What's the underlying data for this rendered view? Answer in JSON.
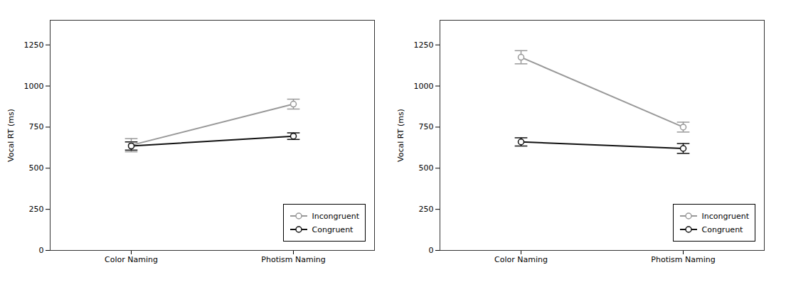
{
  "chart_data": [
    {
      "type": "line",
      "categories": [
        "Color Naming",
        "Photism Naming"
      ],
      "series": [
        {
          "name": "Incongruent",
          "color": "#999999",
          "values": [
            640,
            890
          ],
          "errors": [
            40,
            30
          ]
        },
        {
          "name": "Congruent",
          "color": "#111111",
          "values": [
            635,
            695
          ],
          "errors": [
            25,
            20
          ]
        }
      ],
      "ylabel": "Vocal RT (ms)",
      "ylim": [
        0,
        1400
      ],
      "yticks": [
        0,
        250,
        500,
        750,
        1000,
        1250
      ],
      "grid": false,
      "legend": "lower right",
      "marker": "circle"
    },
    {
      "type": "line",
      "categories": [
        "Color Naming",
        "Photism Naming"
      ],
      "series": [
        {
          "name": "Incongruent",
          "color": "#999999",
          "values": [
            1175,
            750
          ],
          "errors": [
            40,
            30
          ]
        },
        {
          "name": "Congruent",
          "color": "#111111",
          "values": [
            660,
            620
          ],
          "errors": [
            25,
            30
          ]
        }
      ],
      "ylabel": "Vocal RT (ms)",
      "ylim": [
        0,
        1400
      ],
      "yticks": [
        0,
        250,
        500,
        750,
        1000,
        1250
      ],
      "grid": false,
      "legend": "lower right",
      "marker": "circle"
    }
  ]
}
